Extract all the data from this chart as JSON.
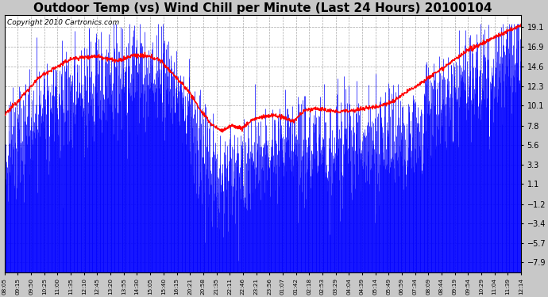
{
  "title": "Outdoor Temp (vs) Wind Chill per Minute (Last 24 Hours) 20100104",
  "copyright": "Copyright 2010 Cartronics.com",
  "yticks": [
    19.1,
    16.9,
    14.6,
    12.3,
    10.1,
    7.8,
    5.6,
    3.3,
    1.1,
    -1.2,
    -3.4,
    -5.7,
    -7.9
  ],
  "ymin": -9.0,
  "ymax": 20.5,
  "xtick_labels": [
    "08:05",
    "09:15",
    "09:50",
    "10:25",
    "11:00",
    "11:35",
    "12:10",
    "12:45",
    "13:20",
    "13:55",
    "14:30",
    "15:05",
    "15:40",
    "16:15",
    "20:21",
    "20:58",
    "21:35",
    "22:11",
    "22:46",
    "23:21",
    "23:56",
    "01:07",
    "01:42",
    "02:18",
    "02:53",
    "03:29",
    "04:04",
    "04:39",
    "05:14",
    "05:49",
    "06:59",
    "07:34",
    "08:09",
    "08:44",
    "09:19",
    "09:54",
    "10:29",
    "11:04",
    "11:39",
    "12:14"
  ],
  "background_color": "#c8c8c8",
  "plot_bg_color": "#ffffff",
  "blue_color": "#0000ff",
  "red_color": "#ff0000",
  "title_fontsize": 11,
  "copyright_fontsize": 6.5,
  "n_points": 1440,
  "red_keypoints": [
    [
      0,
      9.0
    ],
    [
      0.07,
      13.5
    ],
    [
      0.13,
      15.5
    ],
    [
      0.18,
      15.8
    ],
    [
      0.22,
      15.2
    ],
    [
      0.25,
      15.9
    ],
    [
      0.28,
      15.7
    ],
    [
      0.3,
      15.4
    ],
    [
      0.33,
      13.5
    ],
    [
      0.36,
      11.5
    ],
    [
      0.38,
      9.5
    ],
    [
      0.4,
      8.0
    ],
    [
      0.42,
      7.2
    ],
    [
      0.44,
      7.8
    ],
    [
      0.46,
      7.5
    ],
    [
      0.48,
      8.5
    ],
    [
      0.5,
      8.8
    ],
    [
      0.52,
      9.0
    ],
    [
      0.54,
      8.7
    ],
    [
      0.56,
      8.3
    ],
    [
      0.58,
      9.5
    ],
    [
      0.6,
      9.8
    ],
    [
      0.62,
      9.6
    ],
    [
      0.64,
      9.4
    ],
    [
      0.66,
      9.5
    ],
    [
      0.68,
      9.6
    ],
    [
      0.7,
      9.8
    ],
    [
      0.72,
      10.0
    ],
    [
      0.75,
      10.5
    ],
    [
      0.8,
      12.5
    ],
    [
      0.85,
      14.5
    ],
    [
      0.9,
      16.5
    ],
    [
      0.95,
      18.0
    ],
    [
      1.0,
      19.3
    ]
  ],
  "blue_envelope_keypoints": [
    [
      0,
      4.5
    ],
    [
      0.05,
      8.0
    ],
    [
      0.1,
      10.0
    ],
    [
      0.15,
      11.5
    ],
    [
      0.2,
      13.0
    ],
    [
      0.25,
      13.5
    ],
    [
      0.3,
      13.0
    ],
    [
      0.32,
      12.5
    ],
    [
      0.34,
      11.0
    ],
    [
      0.36,
      8.0
    ],
    [
      0.38,
      5.0
    ],
    [
      0.4,
      3.0
    ],
    [
      0.42,
      2.0
    ],
    [
      0.44,
      3.0
    ],
    [
      0.46,
      3.5
    ],
    [
      0.48,
      4.0
    ],
    [
      0.5,
      4.5
    ],
    [
      0.52,
      5.0
    ],
    [
      0.56,
      5.5
    ],
    [
      0.6,
      5.5
    ],
    [
      0.65,
      5.5
    ],
    [
      0.7,
      5.5
    ],
    [
      0.75,
      6.0
    ],
    [
      0.8,
      8.0
    ],
    [
      0.85,
      10.5
    ],
    [
      0.9,
      12.5
    ],
    [
      0.95,
      14.0
    ],
    [
      1.0,
      16.0
    ]
  ]
}
